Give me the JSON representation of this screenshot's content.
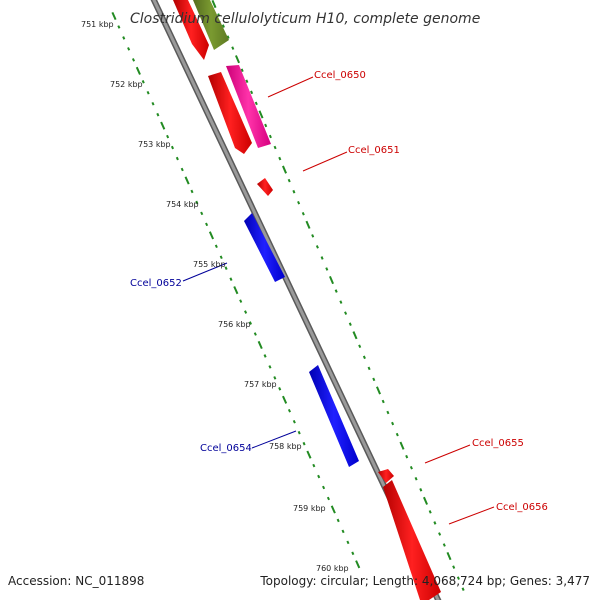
{
  "title": "Clostridium cellulolyticum H10, complete genome",
  "ticks": [
    "751 kbp",
    "752 kbp",
    "753 kbp",
    "754 kbp",
    "755 kbp",
    "756 kbp",
    "757 kbp",
    "758 kbp",
    "759 kbp",
    "760 kbp"
  ],
  "genes": [
    {
      "label": "Ccel_0650",
      "strand": "forward",
      "color": "#ff0099"
    },
    {
      "label": "Ccel_0651",
      "strand": "forward",
      "color": "#ff0000"
    },
    {
      "label": "Ccel_0652",
      "strand": "reverse",
      "color": "#0000ff"
    },
    {
      "label": "Ccel_0654",
      "strand": "reverse",
      "color": "#0000ff"
    },
    {
      "label": "Ccel_0655",
      "strand": "forward",
      "color": "#ff0000"
    },
    {
      "label": "Ccel_0656",
      "strand": "forward",
      "color": "#ff0000"
    }
  ],
  "footer": {
    "accession": "Accession: NC_011898",
    "summary": "Topology: circular; Length: 4,068,724 bp; Genes: 3,477"
  },
  "colors": {
    "forward_label": "#cc0000",
    "reverse_label": "#000099",
    "tick_dots": "#228b22",
    "backbone": "#8c8c8c",
    "olive_feature": "#6b8e23"
  }
}
